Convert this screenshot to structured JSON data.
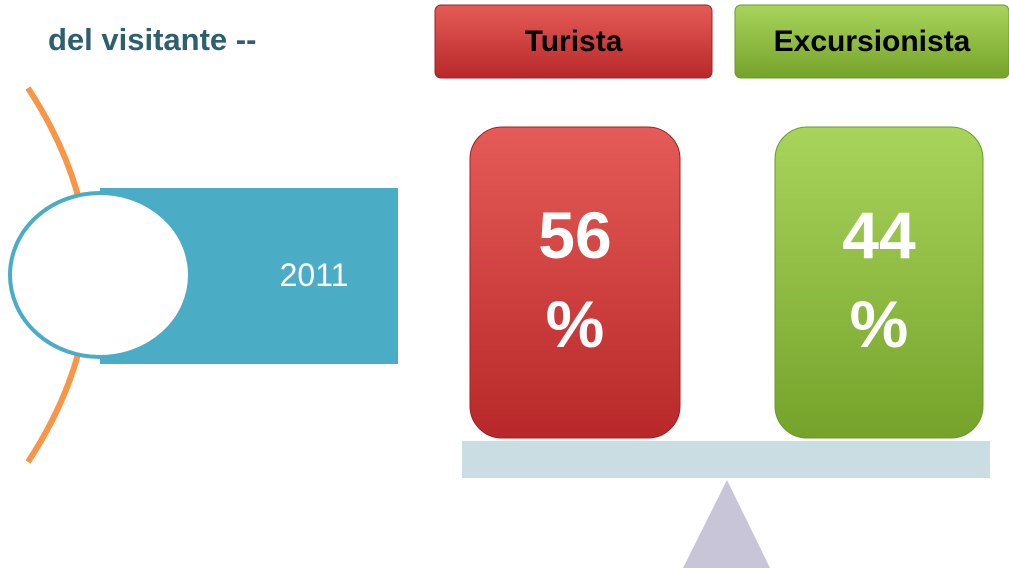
{
  "title": "del visitante --",
  "year": "2011",
  "groups": [
    {
      "label": "Turista",
      "value": "56 %"
    },
    {
      "label": "Excursionista",
      "value": "44 %"
    }
  ]
}
